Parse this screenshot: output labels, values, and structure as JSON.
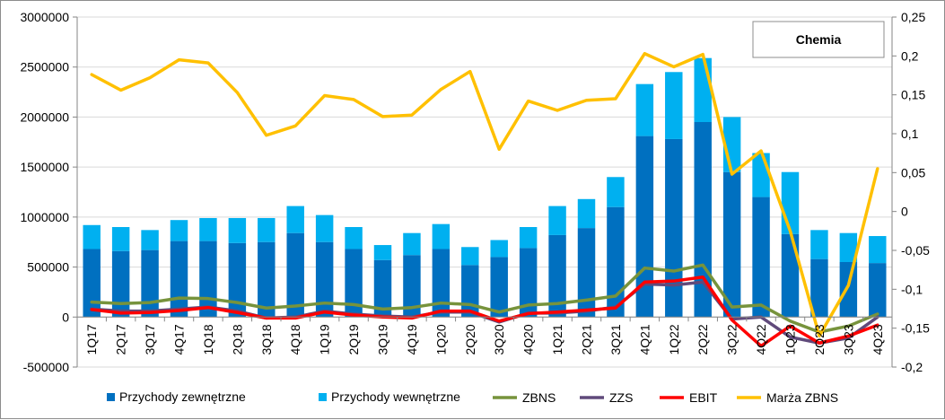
{
  "chart_data": {
    "type": "bar",
    "title": "Chemia",
    "categories": [
      "1Q17",
      "2Q17",
      "3Q17",
      "4Q17",
      "1Q18",
      "2Q18",
      "3Q18",
      "4Q18",
      "1Q19",
      "2Q19",
      "3Q19",
      "4Q19",
      "1Q20",
      "2Q20",
      "3Q20",
      "4Q20",
      "1Q21",
      "2Q21",
      "3Q21",
      "4Q21",
      "1Q22",
      "2Q22",
      "3Q22",
      "4Q22",
      "1Q23",
      "2Q23",
      "3Q23",
      "4Q23"
    ],
    "y_left": {
      "range": [
        -500000,
        3000000
      ],
      "ticks": [
        "-500000",
        "0",
        "500000",
        "1000000",
        "1500000",
        "2000000",
        "2500000",
        "3000000"
      ],
      "tick_values": [
        -500000,
        0,
        500000,
        1000000,
        1500000,
        2000000,
        2500000,
        3000000
      ]
    },
    "y_right": {
      "range": [
        -0.2,
        0.25
      ],
      "ticks": [
        "-0,2",
        "-0,15",
        "-0,1",
        "-0,05",
        "0",
        "0,05",
        "0,1",
        "0,15",
        "0,2",
        "0,25"
      ],
      "tick_values": [
        -0.2,
        -0.15,
        -0.1,
        -0.05,
        0,
        0.05,
        0.1,
        0.15,
        0.2,
        0.25
      ]
    },
    "grid": true,
    "legend_position": "bottom",
    "bars": [
      {
        "name": "Przychody zewnętrzne",
        "color": "#0070C0",
        "values": [
          680000,
          660000,
          670000,
          760000,
          760000,
          740000,
          750000,
          840000,
          750000,
          680000,
          570000,
          620000,
          680000,
          520000,
          600000,
          690000,
          820000,
          890000,
          1100000,
          1810000,
          1780000,
          1950000,
          1450000,
          1200000,
          830000,
          580000,
          550000,
          540000
        ]
      },
      {
        "name": "Przychody wewnętrzne",
        "color": "#00B0F0",
        "values": [
          240000,
          240000,
          200000,
          210000,
          230000,
          250000,
          240000,
          270000,
          270000,
          220000,
          150000,
          220000,
          250000,
          180000,
          170000,
          210000,
          290000,
          290000,
          300000,
          520000,
          670000,
          640000,
          550000,
          440000,
          620000,
          290000,
          290000,
          270000
        ]
      }
    ],
    "lines_left_axis": [
      {
        "name": "ZBNS",
        "color": "#77933C",
        "values": [
          150000,
          135000,
          145000,
          190000,
          185000,
          145000,
          90000,
          110000,
          140000,
          125000,
          80000,
          95000,
          140000,
          125000,
          50000,
          120000,
          135000,
          170000,
          210000,
          490000,
          460000,
          520000,
          100000,
          120000,
          -40000,
          -150000,
          -90000,
          30000
        ]
      },
      {
        "name": "ZZS",
        "color": "#604A7B",
        "values": [
          80000,
          60000,
          60000,
          80000,
          100000,
          60000,
          -10000,
          0,
          60000,
          30000,
          10000,
          0,
          50000,
          50000,
          -50000,
          40000,
          40000,
          60000,
          100000,
          330000,
          320000,
          350000,
          -20000,
          0,
          -200000,
          -260000,
          -210000,
          0
        ]
      },
      {
        "name": "EBIT",
        "color": "#FF0000",
        "values": [
          75000,
          40000,
          45000,
          65000,
          95000,
          45000,
          -10000,
          -10000,
          50000,
          20000,
          0,
          -10000,
          60000,
          60000,
          -40000,
          35000,
          50000,
          70000,
          90000,
          350000,
          360000,
          400000,
          -30000,
          -290000,
          -90000,
          -260000,
          -190000,
          -80000
        ]
      }
    ],
    "lines_right_axis": [
      {
        "name": "Marża ZBNS",
        "color": "#FFC000",
        "values": [
          0.176,
          0.156,
          0.172,
          0.195,
          0.191,
          0.153,
          0.098,
          0.11,
          0.149,
          0.144,
          0.122,
          0.124,
          0.157,
          0.18,
          0.08,
          0.142,
          0.13,
          0.143,
          0.145,
          0.203,
          0.186,
          0.202,
          0.048,
          0.078,
          -0.025,
          -0.16,
          -0.095,
          0.055
        ]
      }
    ],
    "xlabel": "",
    "ylabel": ""
  }
}
